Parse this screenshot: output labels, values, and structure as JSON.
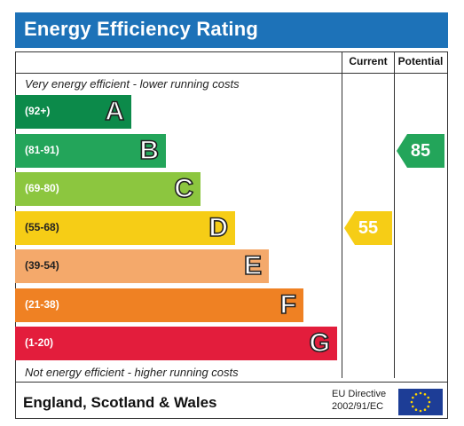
{
  "title": "Energy Efficiency Rating",
  "columns": {
    "current": "Current",
    "potential": "Potential"
  },
  "top_caption": "Very energy efficient - lower running costs",
  "bottom_caption": "Not energy efficient - higher running costs",
  "bands": [
    {
      "letter": "A",
      "range": "(92+)",
      "color": "#0c8a4a"
    },
    {
      "letter": "B",
      "range": "(81-91)",
      "color": "#23a55a"
    },
    {
      "letter": "C",
      "range": "(69-80)",
      "color": "#8cc63f"
    },
    {
      "letter": "D",
      "range": "(55-68)",
      "color": "#f6cd16"
    },
    {
      "letter": "E",
      "range": "(39-54)",
      "color": "#f4a96b"
    },
    {
      "letter": "F",
      "range": "(21-38)",
      "color": "#ef8123"
    },
    {
      "letter": "G",
      "range": "(1-20)",
      "color": "#e31d3c"
    }
  ],
  "current": {
    "value": "55",
    "band": "D",
    "color": "#f6cd16"
  },
  "potential": {
    "value": "85",
    "band": "B",
    "color": "#23a55a"
  },
  "footer": {
    "region": "England, Scotland & Wales",
    "directive_line1": "EU Directive",
    "directive_line2": "2002/91/EC",
    "flag_icon": "eu-flag-icon"
  }
}
